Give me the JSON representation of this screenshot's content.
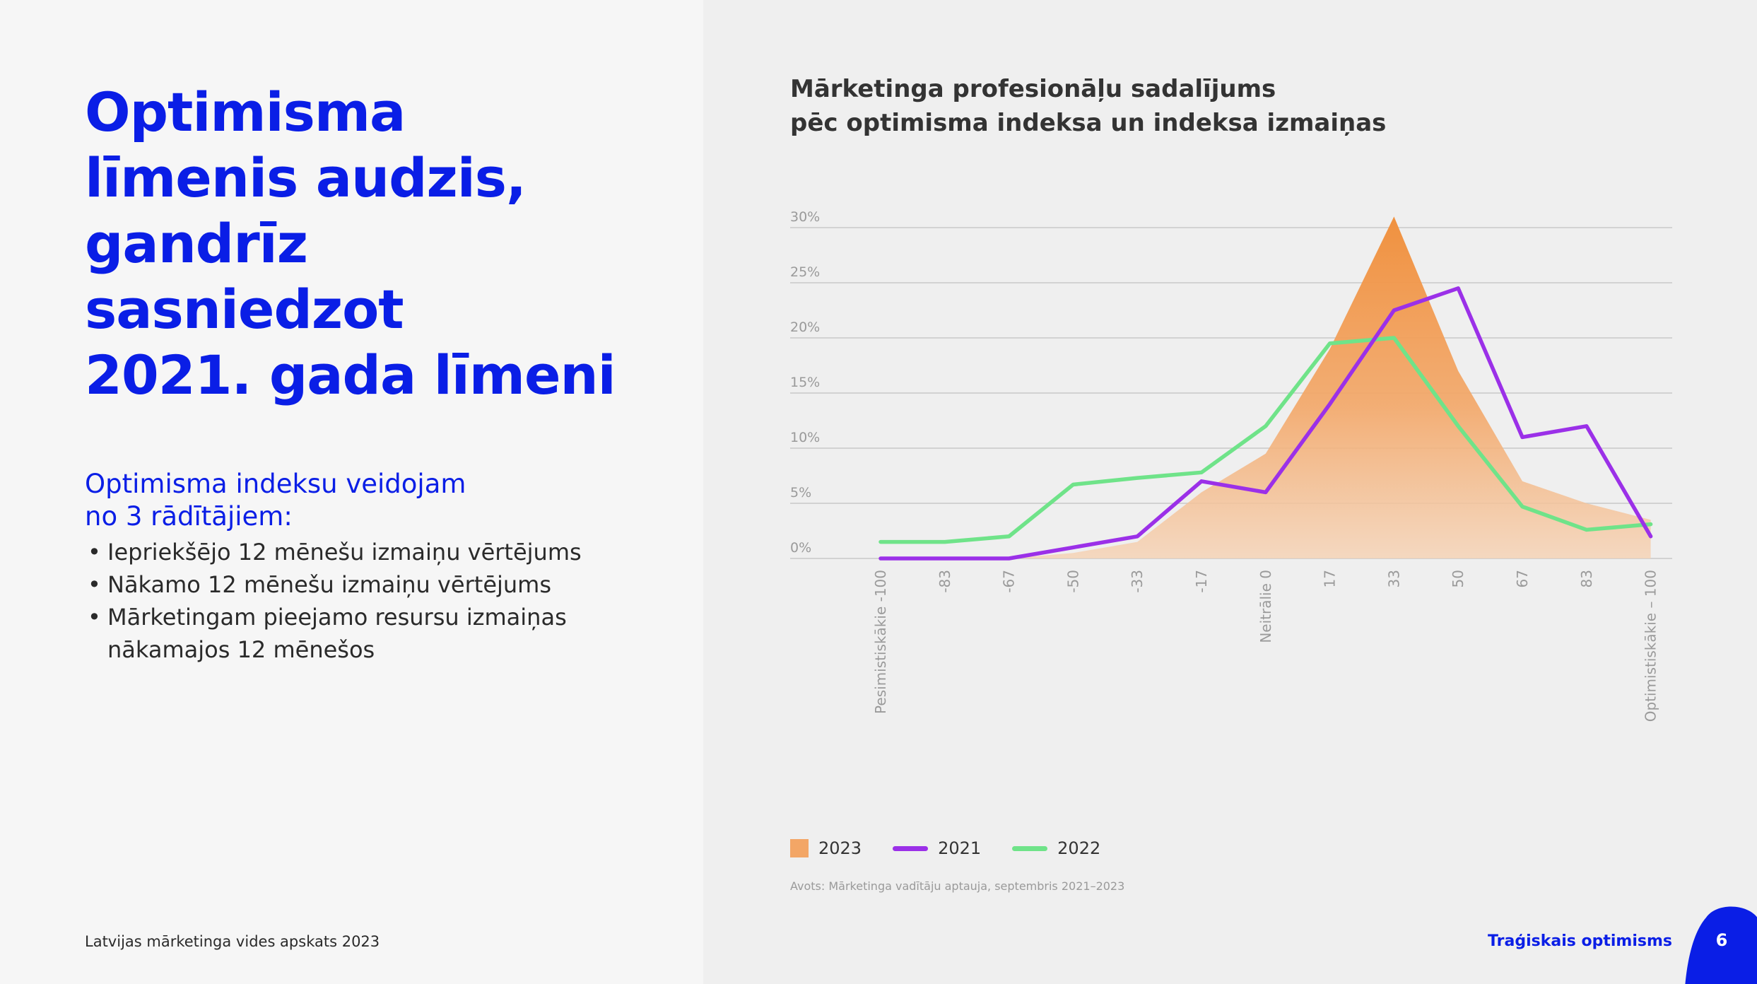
{
  "headline": [
    "Optimisma",
    "līmenis audzis,",
    "gandrīz",
    "sasniedzot",
    "2021. gada līmeni"
  ],
  "subhead": [
    "Optimisma indeksu veidojam",
    "no 3 rādītājiem:"
  ],
  "bullets": [
    "Iepriekšējo 12 mēnešu izmaiņu vērtējums",
    "Nākamo 12 mēnešu izmaiņu vērtējums",
    "Mārketingam pieejamo resursu izmaiņas nākamajos 12 mēnešos"
  ],
  "footer": {
    "left": "Latvijas mārketinga vides apskats 2023",
    "right": "Traģiskais optimisms",
    "page_number": "6"
  },
  "colors": {
    "accent_blue": "#0a1ee6",
    "series_2023": "#f0913f",
    "series_2021": "#9b30e8",
    "series_2022": "#6fe389"
  },
  "chart_data": {
    "type": "line",
    "title": [
      "Mārketinga profesionāļu sadalījums",
      "pēc optimisma indeksa un indeksa izmaiņas"
    ],
    "categories": [
      "Pesimistiskākie -100",
      "-83",
      "-67",
      "-50",
      "-33",
      "-17",
      "Neitrālie 0",
      "17",
      "33",
      "50",
      "67",
      "83",
      "Optimistiskākie – 100"
    ],
    "ylim": [
      0,
      30
    ],
    "yticks": [
      "0%",
      "5%",
      "10%",
      "15%",
      "20%",
      "25%",
      "30%"
    ],
    "grid": true,
    "legend_position": "bottom-left",
    "series": [
      {
        "name": "2023",
        "type": "area",
        "values": [
          0,
          0,
          0,
          0.5,
          1.5,
          6,
          9.5,
          19,
          31,
          17,
          7,
          5,
          3.5
        ]
      },
      {
        "name": "2021",
        "type": "line",
        "values": [
          0,
          0,
          0,
          1,
          2,
          7,
          6,
          14,
          22.5,
          24.5,
          11,
          12,
          2
        ]
      },
      {
        "name": "2022",
        "type": "line",
        "values": [
          1.5,
          1.5,
          2,
          6.7,
          7.3,
          7.8,
          12,
          19.5,
          20,
          12,
          4.7,
          2.6,
          3.1
        ]
      }
    ],
    "source": "Avots: Mārketinga vadītāju aptauja, septembris 2021–2023"
  }
}
